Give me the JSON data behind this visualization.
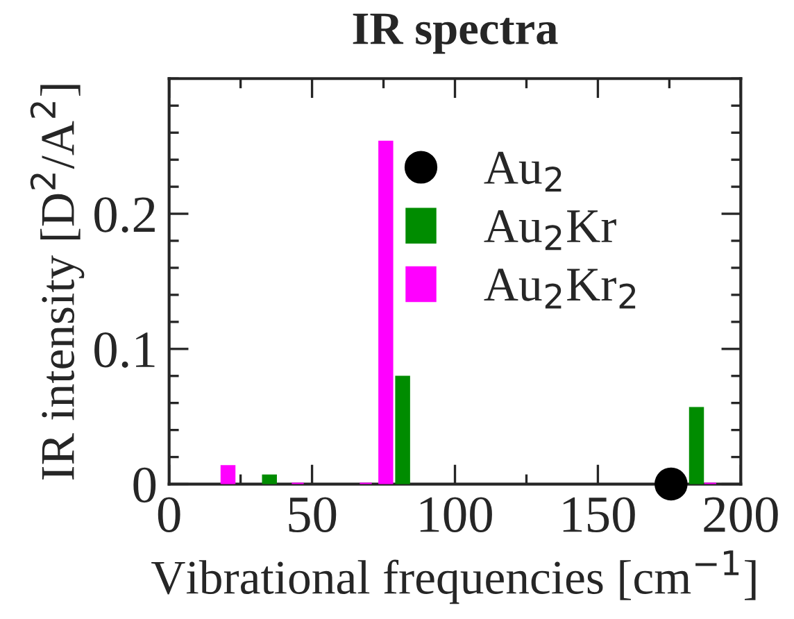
{
  "chart_data": {
    "type": "bar",
    "title": "IR spectra",
    "xlabel": "Vibrational frequencies [cm$^{−1}$]",
    "ylabel": "IR intensity [D$^{2}$/A$^{2}$]",
    "xlim": [
      0,
      200
    ],
    "xticks": [
      0,
      50,
      100,
      150,
      200
    ],
    "ylim": [
      0,
      0.3
    ],
    "yticks": [
      0,
      0.1,
      0.2
    ],
    "legend": "top right",
    "grid": false,
    "series": [
      {
        "name": "Au$_{2}$",
        "type": "scatter",
        "marker": "circle",
        "color": "#000000",
        "x": [
          175.6
        ],
        "values": [
          0
        ]
      },
      {
        "name": "Au$_{2}$Kr",
        "color": "#008c00",
        "x": [
          35.1,
          81.7,
          184.5
        ],
        "values": [
          0.006,
          0.079,
          0.056
        ]
      },
      {
        "name": "Au$_{2}$Kr$_{2}$",
        "color": "#ff00ff",
        "x": [
          20.6,
          45.0,
          68.8,
          75.8,
          189.3
        ],
        "values": [
          0.013,
          0,
          0,
          0.253,
          0
        ]
      }
    ]
  }
}
